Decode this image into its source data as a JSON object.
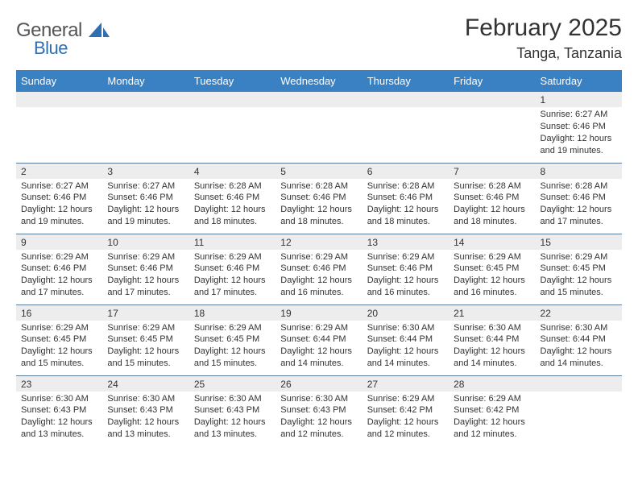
{
  "logo": {
    "text1": "General",
    "text2": "Blue"
  },
  "title": "February 2025",
  "location": "Tanga, Tanzania",
  "colors": {
    "header_bg": "#3a81c4",
    "header_fg": "#ffffff",
    "daynum_bg": "#ededed",
    "rule": "#5a7a9a",
    "accent": "#2f6fb0"
  },
  "weekdays": [
    "Sunday",
    "Monday",
    "Tuesday",
    "Wednesday",
    "Thursday",
    "Friday",
    "Saturday"
  ],
  "weeks": [
    [
      null,
      null,
      null,
      null,
      null,
      null,
      {
        "n": "1",
        "sr": "Sunrise: 6:27 AM",
        "ss": "Sunset: 6:46 PM",
        "dl": "Daylight: 12 hours and 19 minutes."
      }
    ],
    [
      {
        "n": "2",
        "sr": "Sunrise: 6:27 AM",
        "ss": "Sunset: 6:46 PM",
        "dl": "Daylight: 12 hours and 19 minutes."
      },
      {
        "n": "3",
        "sr": "Sunrise: 6:27 AM",
        "ss": "Sunset: 6:46 PM",
        "dl": "Daylight: 12 hours and 19 minutes."
      },
      {
        "n": "4",
        "sr": "Sunrise: 6:28 AM",
        "ss": "Sunset: 6:46 PM",
        "dl": "Daylight: 12 hours and 18 minutes."
      },
      {
        "n": "5",
        "sr": "Sunrise: 6:28 AM",
        "ss": "Sunset: 6:46 PM",
        "dl": "Daylight: 12 hours and 18 minutes."
      },
      {
        "n": "6",
        "sr": "Sunrise: 6:28 AM",
        "ss": "Sunset: 6:46 PM",
        "dl": "Daylight: 12 hours and 18 minutes."
      },
      {
        "n": "7",
        "sr": "Sunrise: 6:28 AM",
        "ss": "Sunset: 6:46 PM",
        "dl": "Daylight: 12 hours and 18 minutes."
      },
      {
        "n": "8",
        "sr": "Sunrise: 6:28 AM",
        "ss": "Sunset: 6:46 PM",
        "dl": "Daylight: 12 hours and 17 minutes."
      }
    ],
    [
      {
        "n": "9",
        "sr": "Sunrise: 6:29 AM",
        "ss": "Sunset: 6:46 PM",
        "dl": "Daylight: 12 hours and 17 minutes."
      },
      {
        "n": "10",
        "sr": "Sunrise: 6:29 AM",
        "ss": "Sunset: 6:46 PM",
        "dl": "Daylight: 12 hours and 17 minutes."
      },
      {
        "n": "11",
        "sr": "Sunrise: 6:29 AM",
        "ss": "Sunset: 6:46 PM",
        "dl": "Daylight: 12 hours and 17 minutes."
      },
      {
        "n": "12",
        "sr": "Sunrise: 6:29 AM",
        "ss": "Sunset: 6:46 PM",
        "dl": "Daylight: 12 hours and 16 minutes."
      },
      {
        "n": "13",
        "sr": "Sunrise: 6:29 AM",
        "ss": "Sunset: 6:46 PM",
        "dl": "Daylight: 12 hours and 16 minutes."
      },
      {
        "n": "14",
        "sr": "Sunrise: 6:29 AM",
        "ss": "Sunset: 6:45 PM",
        "dl": "Daylight: 12 hours and 16 minutes."
      },
      {
        "n": "15",
        "sr": "Sunrise: 6:29 AM",
        "ss": "Sunset: 6:45 PM",
        "dl": "Daylight: 12 hours and 15 minutes."
      }
    ],
    [
      {
        "n": "16",
        "sr": "Sunrise: 6:29 AM",
        "ss": "Sunset: 6:45 PM",
        "dl": "Daylight: 12 hours and 15 minutes."
      },
      {
        "n": "17",
        "sr": "Sunrise: 6:29 AM",
        "ss": "Sunset: 6:45 PM",
        "dl": "Daylight: 12 hours and 15 minutes."
      },
      {
        "n": "18",
        "sr": "Sunrise: 6:29 AM",
        "ss": "Sunset: 6:45 PM",
        "dl": "Daylight: 12 hours and 15 minutes."
      },
      {
        "n": "19",
        "sr": "Sunrise: 6:29 AM",
        "ss": "Sunset: 6:44 PM",
        "dl": "Daylight: 12 hours and 14 minutes."
      },
      {
        "n": "20",
        "sr": "Sunrise: 6:30 AM",
        "ss": "Sunset: 6:44 PM",
        "dl": "Daylight: 12 hours and 14 minutes."
      },
      {
        "n": "21",
        "sr": "Sunrise: 6:30 AM",
        "ss": "Sunset: 6:44 PM",
        "dl": "Daylight: 12 hours and 14 minutes."
      },
      {
        "n": "22",
        "sr": "Sunrise: 6:30 AM",
        "ss": "Sunset: 6:44 PM",
        "dl": "Daylight: 12 hours and 14 minutes."
      }
    ],
    [
      {
        "n": "23",
        "sr": "Sunrise: 6:30 AM",
        "ss": "Sunset: 6:43 PM",
        "dl": "Daylight: 12 hours and 13 minutes."
      },
      {
        "n": "24",
        "sr": "Sunrise: 6:30 AM",
        "ss": "Sunset: 6:43 PM",
        "dl": "Daylight: 12 hours and 13 minutes."
      },
      {
        "n": "25",
        "sr": "Sunrise: 6:30 AM",
        "ss": "Sunset: 6:43 PM",
        "dl": "Daylight: 12 hours and 13 minutes."
      },
      {
        "n": "26",
        "sr": "Sunrise: 6:30 AM",
        "ss": "Sunset: 6:43 PM",
        "dl": "Daylight: 12 hours and 12 minutes."
      },
      {
        "n": "27",
        "sr": "Sunrise: 6:29 AM",
        "ss": "Sunset: 6:42 PM",
        "dl": "Daylight: 12 hours and 12 minutes."
      },
      {
        "n": "28",
        "sr": "Sunrise: 6:29 AM",
        "ss": "Sunset: 6:42 PM",
        "dl": "Daylight: 12 hours and 12 minutes."
      },
      null
    ]
  ]
}
